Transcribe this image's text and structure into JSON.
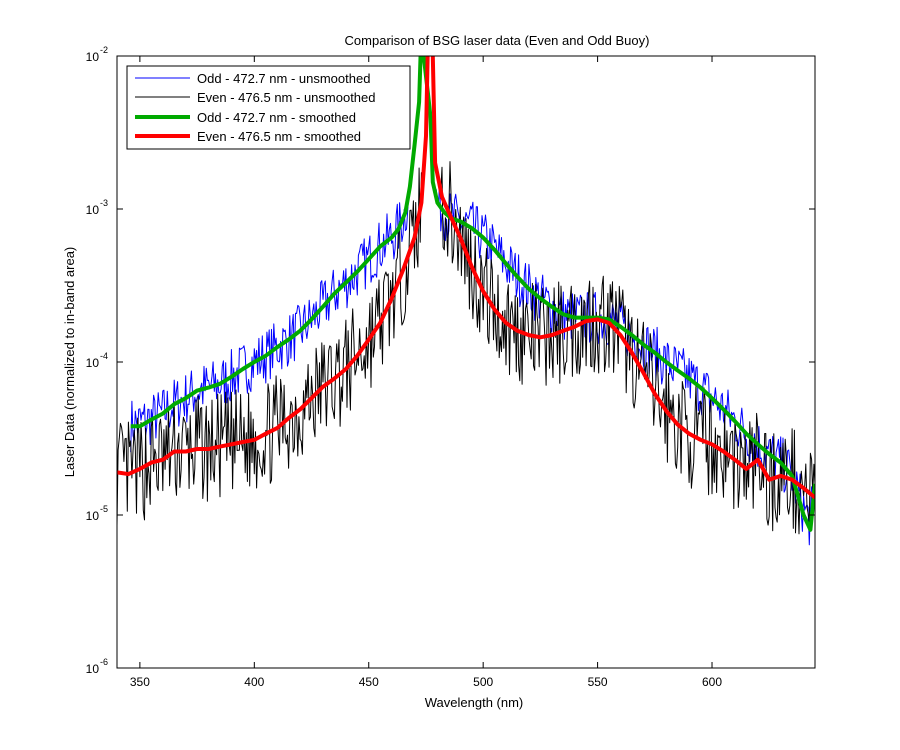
{
  "chart_data": {
    "type": "line",
    "title": "Comparison of BSG laser data (Even and Odd Buoy)",
    "xlabel": "Wavelength (nm)",
    "ylabel": "Laser Data (normalized to in-band area)",
    "xlim": [
      340,
      645
    ],
    "ylim": [
      1e-06,
      0.01
    ],
    "yscale": "log",
    "x_ticks": [
      350,
      400,
      450,
      500,
      550,
      600
    ],
    "y_ticks": [
      {
        "value": 1e-06,
        "base": "10",
        "exp": "-6"
      },
      {
        "value": 1e-05,
        "base": "10",
        "exp": "-5"
      },
      {
        "value": 0.0001,
        "base": "10",
        "exp": "-4"
      },
      {
        "value": 0.001,
        "base": "10",
        "exp": "-3"
      },
      {
        "value": 0.01,
        "base": "10",
        "exp": "-2"
      }
    ],
    "grid": false,
    "legend_position": "top-left",
    "series": [
      {
        "name": "Odd - 472.7 nm - unsmoothed",
        "color": "#0000ff",
        "width": 1,
        "noise": 0.18,
        "seed": 7,
        "points": [
          [
            346,
            3.9e-05
          ],
          [
            350,
            4e-05
          ],
          [
            355,
            4.2e-05
          ],
          [
            360,
            4.6e-05
          ],
          [
            365,
            5.3e-05
          ],
          [
            370,
            5.8e-05
          ],
          [
            375,
            6.5e-05
          ],
          [
            380,
            6.8e-05
          ],
          [
            385,
            7.2e-05
          ],
          [
            390,
            8e-05
          ],
          [
            395,
            9e-05
          ],
          [
            400,
            0.0001
          ],
          [
            405,
            0.00011
          ],
          [
            410,
            0.000125
          ],
          [
            415,
            0.00014
          ],
          [
            420,
            0.00016
          ],
          [
            425,
            0.00019
          ],
          [
            430,
            0.00023
          ],
          [
            435,
            0.00028
          ],
          [
            440,
            0.00033
          ],
          [
            445,
            0.00039
          ],
          [
            450,
            0.00047
          ],
          [
            455,
            0.00057
          ],
          [
            460,
            0.00065
          ],
          [
            463,
            0.00074
          ],
          [
            466,
            0.00095
          ],
          [
            468,
            0.0014
          ],
          [
            470,
            0.0026
          ],
          [
            472,
            0.005
          ],
          [
            473,
            0.015
          ],
          [
            474,
            0.01
          ],
          [
            476,
            0.0055
          ],
          [
            477,
            0.004
          ],
          [
            478,
            0.0015
          ],
          [
            480,
            0.0011
          ],
          [
            483,
            0.00095
          ],
          [
            486,
            0.00087
          ],
          [
            490,
            0.00083
          ],
          [
            495,
            0.00075
          ],
          [
            500,
            0.00065
          ],
          [
            505,
            0.00054
          ],
          [
            510,
            0.00044
          ],
          [
            515,
            0.00036
          ],
          [
            520,
            0.0003
          ],
          [
            525,
            0.00026
          ],
          [
            530,
            0.00023
          ],
          [
            535,
            0.000205
          ],
          [
            540,
            0.000195
          ],
          [
            545,
            0.000195
          ],
          [
            550,
            0.000195
          ],
          [
            555,
            0.00019
          ],
          [
            560,
            0.00017
          ],
          [
            565,
            0.00015
          ],
          [
            570,
            0.00013
          ],
          [
            575,
            0.000115
          ],
          [
            580,
            0.0001
          ],
          [
            585,
            8.8e-05
          ],
          [
            590,
            7.8e-05
          ],
          [
            595,
            6.8e-05
          ],
          [
            600,
            5.8e-05
          ],
          [
            605,
            4.9e-05
          ],
          [
            610,
            4.1e-05
          ],
          [
            615,
            3.4e-05
          ],
          [
            620,
            2.9e-05
          ],
          [
            625,
            2.5e-05
          ],
          [
            630,
            2.2e-05
          ],
          [
            635,
            1.8e-05
          ],
          [
            640,
            1.1e-05
          ],
          [
            643,
            9e-06
          ],
          [
            645,
            1.5e-05
          ]
        ]
      },
      {
        "name": "Even - 476.5 nm - unsmoothed",
        "color": "#000000",
        "width": 1,
        "noise": 0.35,
        "seed": 13,
        "points": [
          [
            340,
            1.9e-05
          ],
          [
            345,
            1.85e-05
          ],
          [
            350,
            2e-05
          ],
          [
            355,
            2.2e-05
          ],
          [
            360,
            2.3e-05
          ],
          [
            365,
            2.6e-05
          ],
          [
            370,
            2.6e-05
          ],
          [
            375,
            2.7e-05
          ],
          [
            380,
            2.7e-05
          ],
          [
            385,
            2.8e-05
          ],
          [
            390,
            2.9e-05
          ],
          [
            395,
            3e-05
          ],
          [
            400,
            3.1e-05
          ],
          [
            405,
            3.4e-05
          ],
          [
            410,
            3.7e-05
          ],
          [
            415,
            4.3e-05
          ],
          [
            420,
            4.9e-05
          ],
          [
            425,
            5.8e-05
          ],
          [
            430,
            6.9e-05
          ],
          [
            435,
            7.8e-05
          ],
          [
            440,
            9e-05
          ],
          [
            445,
            0.00011
          ],
          [
            450,
            0.00014
          ],
          [
            455,
            0.00018
          ],
          [
            460,
            0.00026
          ],
          [
            465,
            0.0004
          ],
          [
            470,
            0.00065
          ],
          [
            473,
            0.0011
          ],
          [
            475,
            0.003
          ],
          [
            476,
            0.015
          ],
          [
            478,
            0.01
          ],
          [
            479,
            0.002
          ],
          [
            482,
            0.0012
          ],
          [
            485,
            0.00095
          ],
          [
            490,
            0.00065
          ],
          [
            495,
            0.00042
          ],
          [
            500,
            0.00029
          ],
          [
            505,
            0.00022
          ],
          [
            510,
            0.00018
          ],
          [
            515,
            0.00016
          ],
          [
            520,
            0.00015
          ],
          [
            525,
            0.000145
          ],
          [
            530,
            0.00015
          ],
          [
            535,
            0.00016
          ],
          [
            540,
            0.00017
          ],
          [
            545,
            0.000185
          ],
          [
            550,
            0.00019
          ],
          [
            555,
            0.00018
          ],
          [
            560,
            0.00015
          ],
          [
            565,
            0.000115
          ],
          [
            570,
            8.5e-05
          ],
          [
            575,
            6.2e-05
          ],
          [
            580,
            4.8e-05
          ],
          [
            585,
            3.9e-05
          ],
          [
            590,
            3.4e-05
          ],
          [
            595,
            3.1e-05
          ],
          [
            600,
            2.9e-05
          ],
          [
            605,
            2.6e-05
          ],
          [
            610,
            2.3e-05
          ],
          [
            615,
            2e-05
          ],
          [
            620,
            2.3e-05
          ],
          [
            625,
            1.7e-05
          ],
          [
            630,
            1.8e-05
          ],
          [
            635,
            1.7e-05
          ],
          [
            640,
            1.5e-05
          ],
          [
            645,
            1.3e-05
          ]
        ]
      },
      {
        "name": "Odd - 472.7 nm - smoothed",
        "color": "#00aa00",
        "width": 4,
        "noise": 0,
        "seed": 0,
        "points": [
          [
            346,
            3.8e-05
          ],
          [
            350,
            3.8e-05
          ],
          [
            355,
            4.2e-05
          ],
          [
            360,
            4.6e-05
          ],
          [
            365,
            5.3e-05
          ],
          [
            370,
            5.8e-05
          ],
          [
            375,
            6.5e-05
          ],
          [
            380,
            6.8e-05
          ],
          [
            385,
            7.2e-05
          ],
          [
            390,
            8e-05
          ],
          [
            395,
            9e-05
          ],
          [
            400,
            0.0001
          ],
          [
            405,
            0.00011
          ],
          [
            410,
            0.000125
          ],
          [
            415,
            0.00014
          ],
          [
            420,
            0.00016
          ],
          [
            425,
            0.00019
          ],
          [
            430,
            0.00023
          ],
          [
            435,
            0.00028
          ],
          [
            440,
            0.00033
          ],
          [
            445,
            0.00039
          ],
          [
            450,
            0.00047
          ],
          [
            455,
            0.00057
          ],
          [
            460,
            0.00065
          ],
          [
            463,
            0.00074
          ],
          [
            466,
            0.00095
          ],
          [
            468,
            0.0014
          ],
          [
            470,
            0.0026
          ],
          [
            472,
            0.005
          ],
          [
            473,
            0.015
          ],
          [
            474,
            0.01
          ],
          [
            476,
            0.0055
          ],
          [
            477,
            0.004
          ],
          [
            478,
            0.0015
          ],
          [
            480,
            0.0011
          ],
          [
            483,
            0.00095
          ],
          [
            486,
            0.00087
          ],
          [
            490,
            0.00083
          ],
          [
            495,
            0.00075
          ],
          [
            500,
            0.00065
          ],
          [
            505,
            0.00054
          ],
          [
            510,
            0.00044
          ],
          [
            515,
            0.00036
          ],
          [
            520,
            0.0003
          ],
          [
            525,
            0.00026
          ],
          [
            530,
            0.00023
          ],
          [
            535,
            0.000205
          ],
          [
            540,
            0.000195
          ],
          [
            545,
            0.000195
          ],
          [
            550,
            0.000195
          ],
          [
            555,
            0.00019
          ],
          [
            560,
            0.00017
          ],
          [
            565,
            0.00015
          ],
          [
            570,
            0.00013
          ],
          [
            575,
            0.000115
          ],
          [
            580,
            0.0001
          ],
          [
            585,
            8.8e-05
          ],
          [
            590,
            7.8e-05
          ],
          [
            595,
            6.8e-05
          ],
          [
            600,
            5.8e-05
          ],
          [
            605,
            4.9e-05
          ],
          [
            610,
            4.1e-05
          ],
          [
            615,
            3.4e-05
          ],
          [
            620,
            2.9e-05
          ],
          [
            625,
            2.5e-05
          ],
          [
            630,
            2.2e-05
          ],
          [
            635,
            1.8e-05
          ],
          [
            640,
            1e-05
          ],
          [
            643,
            8e-06
          ],
          [
            645,
            1.6e-05
          ]
        ]
      },
      {
        "name": "Even - 476.5 nm - smoothed",
        "color": "#ff0000",
        "width": 4,
        "noise": 0,
        "seed": 0,
        "points": [
          [
            340,
            1.9e-05
          ],
          [
            345,
            1.85e-05
          ],
          [
            350,
            2e-05
          ],
          [
            355,
            2.2e-05
          ],
          [
            360,
            2.3e-05
          ],
          [
            365,
            2.6e-05
          ],
          [
            370,
            2.6e-05
          ],
          [
            375,
            2.7e-05
          ],
          [
            380,
            2.7e-05
          ],
          [
            385,
            2.8e-05
          ],
          [
            390,
            2.9e-05
          ],
          [
            395,
            3e-05
          ],
          [
            400,
            3.1e-05
          ],
          [
            405,
            3.4e-05
          ],
          [
            410,
            3.7e-05
          ],
          [
            415,
            4.3e-05
          ],
          [
            420,
            4.9e-05
          ],
          [
            425,
            5.8e-05
          ],
          [
            430,
            6.9e-05
          ],
          [
            435,
            7.8e-05
          ],
          [
            440,
            9e-05
          ],
          [
            445,
            0.00011
          ],
          [
            450,
            0.00014
          ],
          [
            455,
            0.00018
          ],
          [
            460,
            0.00026
          ],
          [
            465,
            0.0004
          ],
          [
            470,
            0.00065
          ],
          [
            473,
            0.0011
          ],
          [
            475,
            0.003
          ],
          [
            476,
            0.015
          ],
          [
            478,
            0.01
          ],
          [
            479,
            0.002
          ],
          [
            482,
            0.0012
          ],
          [
            485,
            0.00095
          ],
          [
            490,
            0.00065
          ],
          [
            495,
            0.00042
          ],
          [
            500,
            0.00029
          ],
          [
            505,
            0.00022
          ],
          [
            510,
            0.00018
          ],
          [
            515,
            0.00016
          ],
          [
            520,
            0.00015
          ],
          [
            525,
            0.000145
          ],
          [
            530,
            0.00015
          ],
          [
            535,
            0.00016
          ],
          [
            540,
            0.00017
          ],
          [
            545,
            0.000185
          ],
          [
            550,
            0.00019
          ],
          [
            555,
            0.00018
          ],
          [
            560,
            0.00015
          ],
          [
            565,
            0.000115
          ],
          [
            570,
            8.5e-05
          ],
          [
            575,
            6.2e-05
          ],
          [
            580,
            4.8e-05
          ],
          [
            585,
            3.9e-05
          ],
          [
            590,
            3.4e-05
          ],
          [
            595,
            3.1e-05
          ],
          [
            600,
            2.9e-05
          ],
          [
            605,
            2.6e-05
          ],
          [
            610,
            2.3e-05
          ],
          [
            615,
            2e-05
          ],
          [
            620,
            2.3e-05
          ],
          [
            625,
            1.7e-05
          ],
          [
            630,
            1.8e-05
          ],
          [
            635,
            1.7e-05
          ],
          [
            640,
            1.5e-05
          ],
          [
            645,
            1.3e-05
          ]
        ]
      }
    ]
  }
}
